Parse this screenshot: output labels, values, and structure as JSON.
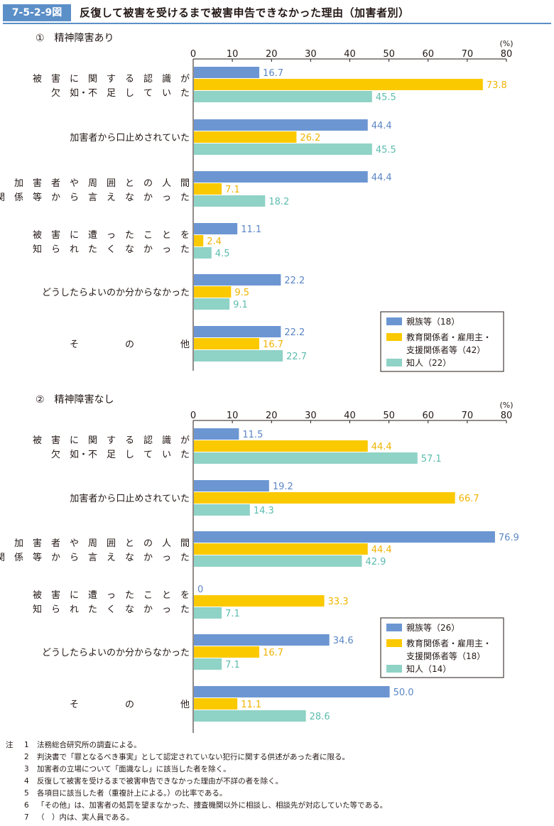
{
  "figure": {
    "number": "7-5-2-9図",
    "title": "反復して被害を受けるまで被害申告できなかった理由（加害者別）"
  },
  "chart_data": [
    {
      "type": "bar",
      "orientation": "horizontal",
      "panel_label": "①　精神障害あり",
      "unit_label": "(%)",
      "xlim": [
        0,
        80
      ],
      "ticks": [
        "0",
        "10",
        "20",
        "30",
        "40",
        "50",
        "60",
        "70",
        "80"
      ],
      "categories": [
        [
          "被　害　に　関　す　る　認　識　が",
          "欠　如・不　足　し　て　い　た"
        ],
        [
          "加害者から口止めされていた"
        ],
        [
          "加　害　者　や　周　囲　と　の　人　間",
          "関　係　等　か　ら　言　え　な　か　っ　た"
        ],
        [
          "被　害　に　遭　っ　た　こ　と　を",
          "知　ら　れ　た　く　な　か　っ　た"
        ],
        [
          "どうしたらよいのか分からなかった"
        ],
        [
          "そ　　　　　の　　　　　他"
        ]
      ],
      "series": [
        {
          "name": "親族等（18）",
          "color": "#6c96d2",
          "label_color": "#5b86c4",
          "values": [
            16.7,
            44.4,
            44.4,
            11.1,
            22.2,
            22.2
          ]
        },
        {
          "name_lines": [
            "教育関係者・雇用主・",
            "支援関係者等（42）"
          ],
          "color": "#fbc900",
          "label_color": "#f0b400",
          "values": [
            73.8,
            26.2,
            7.1,
            2.4,
            9.5,
            16.7
          ]
        },
        {
          "name": "知人（22）",
          "color": "#8fd2c6",
          "label_color": "#5cbcae",
          "values": [
            45.5,
            45.5,
            18.2,
            4.5,
            9.1,
            22.7
          ]
        }
      ],
      "value_labels": [
        [
          "16.7",
          "44.4",
          "44.4",
          "11.1",
          "22.2",
          "22.2"
        ],
        [
          "73.8",
          "26.2",
          "7.1",
          "2.4",
          "9.5",
          "16.7"
        ],
        [
          "45.5",
          "45.5",
          "18.2",
          "4.5",
          "9.1",
          "22.7"
        ]
      ],
      "legend_position": "bottom-right"
    },
    {
      "type": "bar",
      "orientation": "horizontal",
      "panel_label": "②　精神障害なし",
      "unit_label": "(%)",
      "xlim": [
        0,
        80
      ],
      "ticks": [
        "0",
        "10",
        "20",
        "30",
        "40",
        "50",
        "60",
        "70",
        "80"
      ],
      "categories": [
        [
          "被　害　に　関　す　る　認　識　が",
          "欠　如・不　足　し　て　い　た"
        ],
        [
          "加害者から口止めされていた"
        ],
        [
          "加　害　者　や　周　囲　と　の　人　間",
          "関　係　等　か　ら　言　え　な　か　っ　た"
        ],
        [
          "被　害　に　遭　っ　た　こ　と　を",
          "知　ら　れ　た　く　な　か　っ　た"
        ],
        [
          "どうしたらよいのか分からなかった"
        ],
        [
          "そ　　　　　の　　　　　他"
        ]
      ],
      "series": [
        {
          "name": "親族等（26）",
          "color": "#6c96d2",
          "label_color": "#5b86c4",
          "values": [
            11.5,
            19.2,
            76.9,
            0,
            34.6,
            50.0
          ]
        },
        {
          "name_lines": [
            "教育関係者・雇用主・",
            "支援関係者等（18）"
          ],
          "color": "#fbc900",
          "label_color": "#f0b400",
          "values": [
            44.4,
            66.7,
            44.4,
            33.3,
            16.7,
            11.1
          ]
        },
        {
          "name": "知人（14）",
          "color": "#8fd2c6",
          "label_color": "#5cbcae",
          "values": [
            57.1,
            14.3,
            42.9,
            7.1,
            7.1,
            28.6
          ]
        }
      ],
      "value_labels": [
        [
          "11.5",
          "19.2",
          "76.9",
          "0",
          "34.6",
          "50.0"
        ],
        [
          "44.4",
          "66.7",
          "44.4",
          "33.3",
          "16.7",
          "11.1"
        ],
        [
          "57.1",
          "14.3",
          "42.9",
          "7.1",
          "7.1",
          "28.6"
        ]
      ],
      "legend_position": "right"
    }
  ],
  "notes": {
    "mark": "注",
    "items": [
      {
        "num": "1",
        "text": "法務総合研究所の調査による。"
      },
      {
        "num": "2",
        "text": "判決書で「罪となるべき事実」として認定されていない犯行に関する供述があった者に限る。"
      },
      {
        "num": "3",
        "text": "加害者の立場について「面識なし」に該当した者を除く。"
      },
      {
        "num": "4",
        "text": "反復して被害を受けるまで被害申告できなかった理由が不詳の者を除く。"
      },
      {
        "num": "5",
        "text": "各項目に該当した者（重複計上による。）の比率である。"
      },
      {
        "num": "6",
        "text": "「その他」は、加害者の処罰を望まなかった、捜査機関以外に相談し、相談先が対応していた等である。"
      },
      {
        "num": "7",
        "text": "（　）内は、実人員である。"
      }
    ]
  }
}
